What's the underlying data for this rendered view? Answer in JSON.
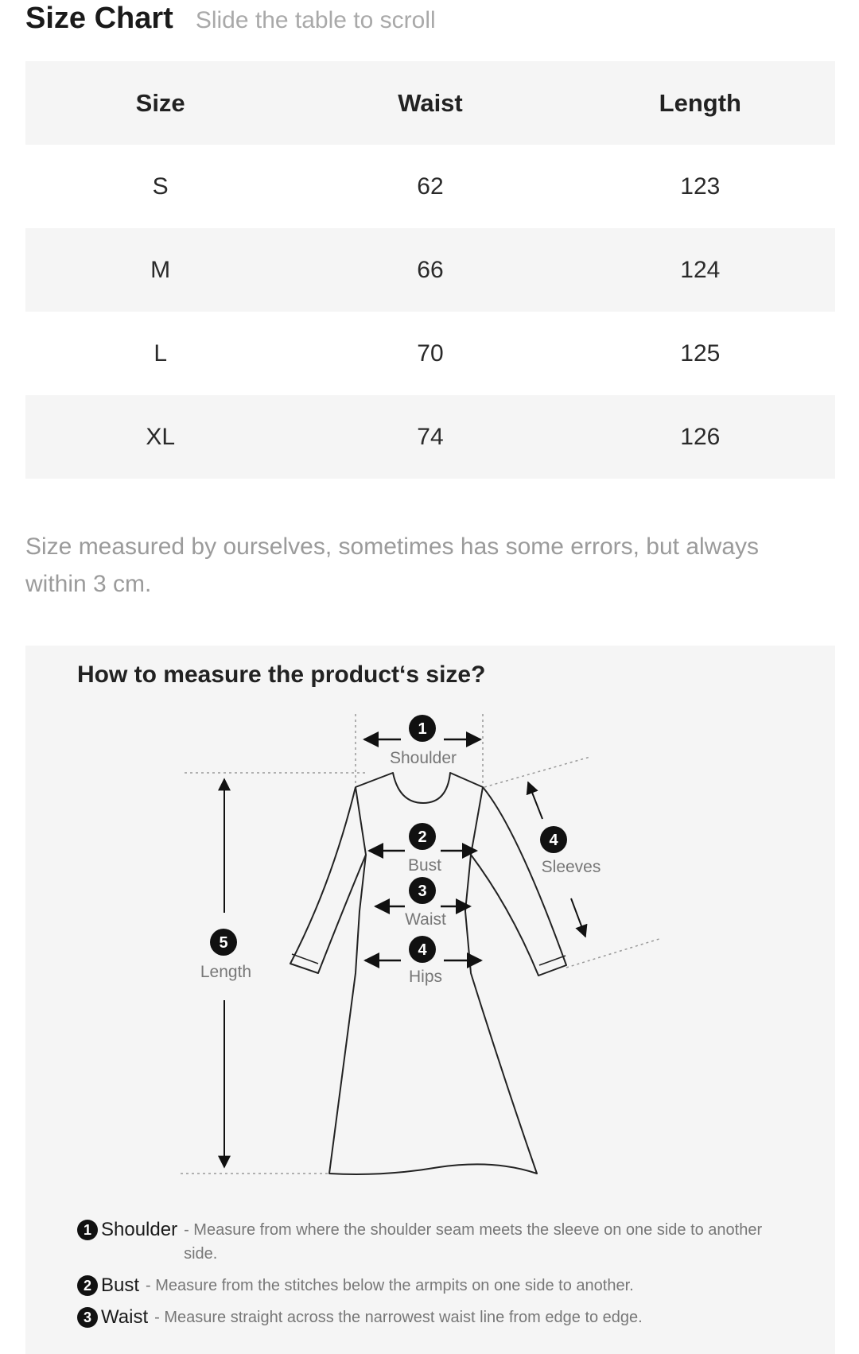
{
  "header": {
    "title": "Size Chart",
    "hint": "Slide the table to scroll"
  },
  "table": {
    "columns": [
      "Size",
      "Waist",
      "Length"
    ],
    "rows": [
      [
        "S",
        "62",
        "123"
      ],
      [
        "M",
        "66",
        "124"
      ],
      [
        "L",
        "70",
        "125"
      ],
      [
        "XL",
        "74",
        "126"
      ]
    ]
  },
  "note": "Size measured by ourselves, sometimes has some errors, but always within 3 cm.",
  "measure": {
    "title": "How to measure the product‘s size?",
    "labels": {
      "shoulder": "Shoulder",
      "bust": "Bust",
      "waist": "Waist",
      "hips": "Hips",
      "sleeves": "Sleeves",
      "length": "Length"
    },
    "legend": [
      {
        "num": "1",
        "name": "Shoulder",
        "desc": "- Measure from where the shoulder seam meets the sleeve on one side to another side."
      },
      {
        "num": "2",
        "name": "Bust",
        "desc": "- Measure from the stitches below the armpits on one side to another."
      },
      {
        "num": "3",
        "name": "Waist",
        "desc": "- Measure straight across the narrowest waist line from edge to edge."
      }
    ]
  }
}
